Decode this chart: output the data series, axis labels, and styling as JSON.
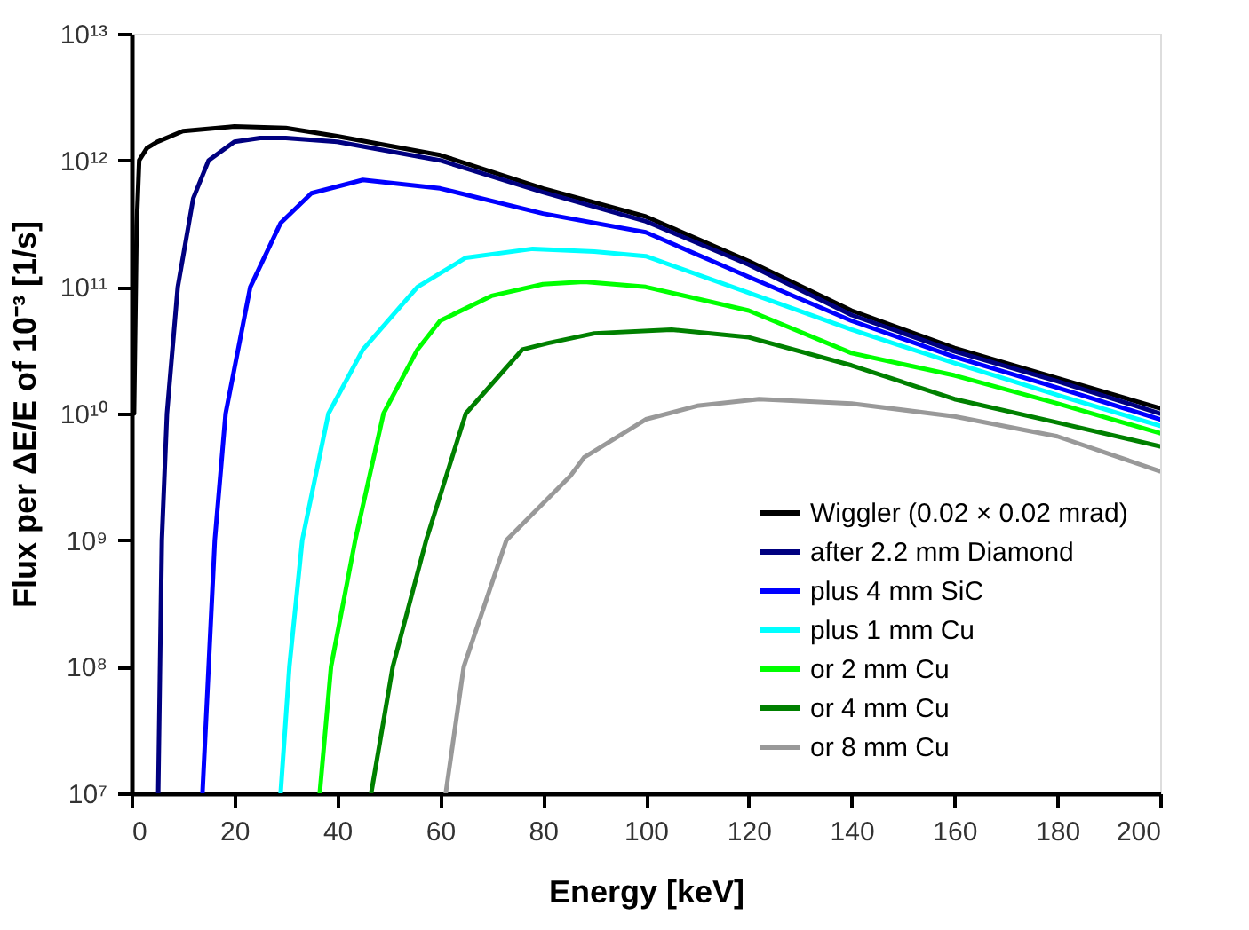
{
  "chart_data": {
    "type": "line",
    "xlabel": "Energy [keV]",
    "ylabel": "Flux per ΔE/E of 10⁻³ [1/s]",
    "log": "y",
    "xlim": [
      0,
      200
    ],
    "xticks": [
      0,
      20,
      40,
      60,
      80,
      100,
      120,
      140,
      160,
      180,
      200
    ],
    "ylim": [
      10000000.0,
      10000000000000.0
    ],
    "yticks": [
      {
        "value": 10000000.0,
        "label": "10⁷"
      },
      {
        "value": 100000000.0,
        "label": "10⁸"
      },
      {
        "value": 1000000000.0,
        "label": "10⁹"
      },
      {
        "value": 10000000000.0,
        "label": "10¹⁰"
      },
      {
        "value": 100000000000.0,
        "label": "10¹¹"
      },
      {
        "value": 1000000000000.0,
        "label": "10¹²"
      },
      {
        "value": 10000000000000.0,
        "label": "10¹³"
      }
    ],
    "grid": false,
    "legend": "bottom right",
    "marker": "none",
    "line_style": "solid",
    "series": [
      {
        "name": "Wiggler (0.02 × 0.02 mrad)",
        "color": "#000000",
        "x": [
          0.5,
          1,
          1.5,
          3,
          5,
          10,
          20,
          30,
          40,
          60,
          80,
          100,
          120,
          140,
          160,
          180,
          200
        ],
        "values": [
          10000000000.0,
          300000000000.0,
          1000000000000.0,
          1250000000000.0,
          1400000000000.0,
          1700000000000.0,
          1850000000000.0,
          1800000000000.0,
          1550000000000.0,
          1100000000000.0,
          600000000000.0,
          360000000000.0,
          160000000000.0,
          65000000000.0,
          33000000000.0,
          19000000000.0,
          11000000000.0
        ]
      },
      {
        "name": "after 2.2 mm Diamond",
        "color": "#000080",
        "x": [
          5.2,
          5.9,
          6.9,
          9,
          12,
          15,
          20,
          25,
          30,
          40,
          60,
          80,
          100,
          120,
          140,
          160,
          180,
          200
        ],
        "values": [
          10000000.0,
          1000000000.0,
          10000000000.0,
          100000000000.0,
          500000000000.0,
          1000000000000.0,
          1400000000000.0,
          1500000000000.0,
          1500000000000.0,
          1400000000000.0,
          1000000000000.0,
          560000000000.0,
          330000000000.0,
          150000000000.0,
          60000000000.0,
          31000000000.0,
          18000000000.0,
          10000000000.0
        ]
      },
      {
        "name": "plus 4 mm SiC",
        "color": "#0000ff",
        "x": [
          13.8,
          16.2,
          18.3,
          23.1,
          29,
          35,
          45,
          60,
          80,
          100,
          120,
          140,
          160,
          180,
          200
        ],
        "values": [
          10000000.0,
          1000000000.0,
          10000000000.0,
          100000000000.0,
          320000000000.0,
          550000000000.0,
          700000000000.0,
          600000000000.0,
          380000000000.0,
          270000000000.0,
          120000000000.0,
          54000000000.0,
          28000000000.0,
          16000000000.0,
          9000000000.0
        ]
      },
      {
        "name": "plus 1 mm Cu",
        "color": "#00ffff",
        "x": [
          29,
          30.7,
          33.2,
          38.3,
          45,
          55.6,
          65,
          78,
          90,
          100,
          120,
          140,
          160,
          180,
          200
        ],
        "values": [
          10000000.0,
          100000000.0,
          1000000000.0,
          10000000000.0,
          32000000000.0,
          100000000000.0,
          170000000000.0,
          200000000000.0,
          190000000000.0,
          175000000000.0,
          90000000000.0,
          46000000000.0,
          25000000000.0,
          14000000000.0,
          8000000000.0
        ]
      },
      {
        "name": "or 2 mm Cu",
        "color": "#00ff00",
        "x": [
          36.6,
          38.8,
          43.5,
          49,
          55.6,
          60,
          70,
          80,
          88,
          100,
          120,
          140,
          160,
          180,
          200
        ],
        "values": [
          10000000.0,
          100000000.0,
          1000000000.0,
          10000000000.0,
          32000000000.0,
          54000000000.0,
          85000000000.0,
          105000000000.0,
          110000000000.0,
          100000000000.0,
          65000000000.0,
          30000000000.0,
          20000000000.0,
          12000000000.0,
          7000000000.0
        ]
      },
      {
        "name": "or 4 mm Cu",
        "color": "#008000",
        "x": [
          46.6,
          50.8,
          57.3,
          65,
          76,
          81,
          90,
          105,
          120,
          140,
          160,
          180,
          200
        ],
        "values": [
          10000000.0,
          100000000.0,
          1000000000.0,
          10000000000.0,
          32000000000.0,
          36000000000.0,
          43000000000.0,
          46000000000.0,
          40000000000.0,
          24000000000.0,
          13000000000.0,
          8500000000.0,
          5500000000.0
        ]
      },
      {
        "name": "or 8 mm Cu",
        "color": "#999999",
        "x": [
          61.1,
          64.6,
          72.9,
          85.3,
          88,
          100,
          110,
          122,
          140,
          160,
          180,
          200
        ],
        "values": [
          10000000.0,
          100000000.0,
          1000000000.0,
          3200000000.0,
          4500000000.0,
          9000000000.0,
          11500000000.0,
          13000000000.0,
          12000000000.0,
          9500000000.0,
          6600000000.0,
          3500000000.0
        ]
      }
    ]
  }
}
